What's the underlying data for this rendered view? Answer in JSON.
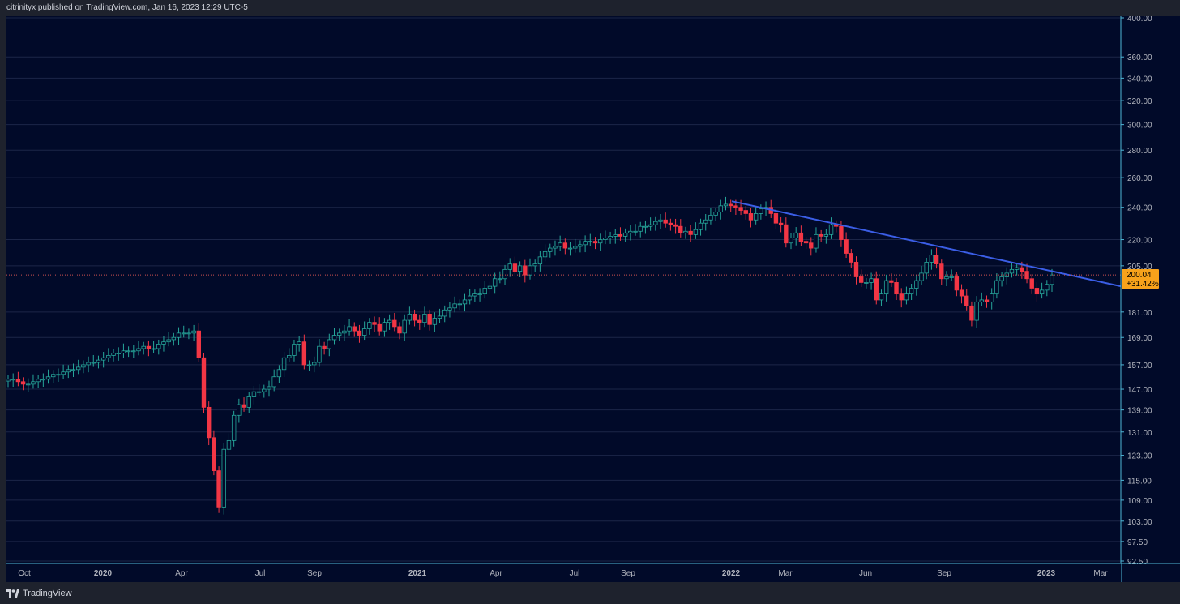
{
  "header": {
    "published_text": "citrinityx published on TradingView.com, Jan 16, 2023 12:29 UTC-5"
  },
  "footer": {
    "brand": "TradingView"
  },
  "colors": {
    "background": "#010a29",
    "grid": "#1c2648",
    "up": "#26a69a",
    "down": "#f23645",
    "trendline": "#3b5ee6",
    "price_badge": "#f7a21b",
    "axis_text": "#b2b5be"
  },
  "chart_data": {
    "type": "candlestick",
    "price_axis_labels": [
      "400.00",
      "360.00",
      "340.00",
      "320.00",
      "300.00",
      "280.00",
      "260.00",
      "240.00",
      "220.00",
      "205.00",
      "181.00",
      "169.00",
      "157.00",
      "147.00",
      "139.00",
      "131.00",
      "123.00",
      "115.00",
      "109.00",
      "103.00",
      "97.50",
      "92.50"
    ],
    "price_axis_values": [
      400,
      360,
      340,
      320,
      300,
      280,
      260,
      240,
      220,
      205,
      181,
      169,
      157,
      147,
      139,
      131,
      123,
      115,
      109,
      103,
      97.5,
      92.5
    ],
    "time_axis_labels": [
      "Oct",
      "2020",
      "Apr",
      "Jul",
      "Sep",
      "2021",
      "Apr",
      "Jul",
      "Sep",
      "2022",
      "Mar",
      "Jun",
      "Sep",
      "2023",
      "Mar"
    ],
    "time_axis_bold": [
      "2020",
      "2021",
      "2022",
      "2023"
    ],
    "last_price": {
      "price": 200.04,
      "price_label": "200.04",
      "change_label": "+31.42%"
    },
    "trendline": {
      "start": {
        "week": "Jan 2022",
        "price": 244
      },
      "end_price_at_axis": 194
    },
    "weekly_closes": [
      151,
      151,
      150,
      149,
      149,
      150,
      151,
      151,
      152,
      153,
      153,
      154,
      155,
      155,
      156,
      157,
      158,
      158,
      159,
      160,
      161,
      162,
      162,
      163,
      163,
      163,
      164,
      165,
      164,
      164,
      166,
      167,
      168,
      169,
      171,
      171,
      171,
      172,
      160,
      140,
      129,
      118,
      107,
      125,
      128,
      137,
      141,
      140,
      144,
      146,
      146,
      147,
      148,
      152,
      155,
      160,
      161,
      166,
      167,
      157,
      157,
      158,
      165,
      164,
      168,
      170,
      171,
      172,
      174,
      172,
      170,
      173,
      176,
      175,
      172,
      176,
      177,
      174,
      171,
      177,
      180,
      177,
      176,
      180,
      175,
      178,
      179,
      182,
      183,
      185,
      185,
      187,
      189,
      190,
      190,
      193,
      194,
      198,
      198,
      203,
      206,
      202,
      205,
      200,
      205,
      206,
      210,
      213,
      215,
      216,
      218,
      215,
      215,
      216,
      217,
      219,
      219,
      218,
      220,
      221,
      222,
      223,
      222,
      224,
      225,
      225,
      228,
      228,
      229,
      231,
      232,
      230,
      229,
      228,
      224,
      225,
      223,
      226,
      230,
      232,
      235,
      237,
      241,
      242,
      241,
      240,
      238,
      236,
      232,
      236,
      239,
      240,
      236,
      230,
      229,
      218,
      221,
      224,
      219,
      218,
      215,
      223,
      222,
      223,
      229,
      228,
      220,
      212,
      207,
      199,
      196,
      196,
      198,
      187,
      190,
      197,
      196,
      190,
      187,
      190,
      193,
      197,
      201,
      207,
      211,
      206,
      198,
      199,
      199,
      192,
      189,
      184,
      177,
      186,
      187,
      186,
      190,
      197,
      199,
      201,
      203,
      204,
      202,
      198,
      193,
      190,
      192,
      195,
      200
    ]
  }
}
